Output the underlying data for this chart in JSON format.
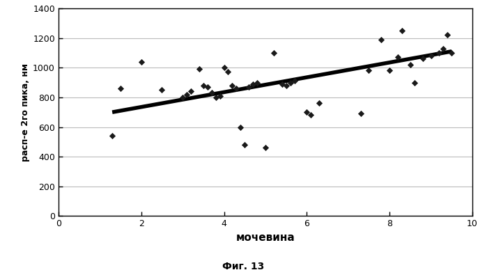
{
  "scatter_x": [
    1.3,
    1.5,
    2.0,
    2.5,
    3.0,
    3.1,
    3.2,
    3.4,
    3.5,
    3.6,
    3.7,
    3.8,
    3.9,
    4.0,
    4.1,
    4.2,
    4.3,
    4.4,
    4.5,
    4.6,
    4.7,
    4.8,
    5.0,
    5.2,
    5.4,
    5.5,
    5.6,
    5.7,
    6.0,
    6.1,
    6.3,
    7.3,
    7.5,
    7.8,
    8.0,
    8.2,
    8.3,
    8.5,
    8.6,
    8.8,
    9.0,
    9.2,
    9.3,
    9.4,
    9.5
  ],
  "scatter_y": [
    540,
    860,
    1040,
    850,
    800,
    820,
    840,
    990,
    880,
    870,
    830,
    800,
    810,
    1000,
    975,
    880,
    860,
    600,
    480,
    870,
    890,
    900,
    460,
    1100,
    890,
    880,
    900,
    910,
    700,
    680,
    760,
    690,
    980,
    1190,
    980,
    1070,
    1250,
    1020,
    900,
    1060,
    1080,
    1100,
    1130,
    1220,
    1100
  ],
  "trendline_x": [
    1.3,
    9.5
  ],
  "trendline_y": [
    700,
    1110
  ],
  "xlabel": "мочевина",
  "ylabel": "расп-е 2го пика, нм",
  "caption": "Фиг. 13",
  "xlim": [
    0,
    10
  ],
  "ylim": [
    0,
    1400
  ],
  "xticks": [
    0,
    2,
    4,
    6,
    8,
    10
  ],
  "yticks": [
    0,
    200,
    400,
    600,
    800,
    1000,
    1200,
    1400
  ],
  "marker_color": "#1a1a1a",
  "trendline_color": "#000000",
  "background_color": "#ffffff",
  "grid_color": "#bbbbbb"
}
